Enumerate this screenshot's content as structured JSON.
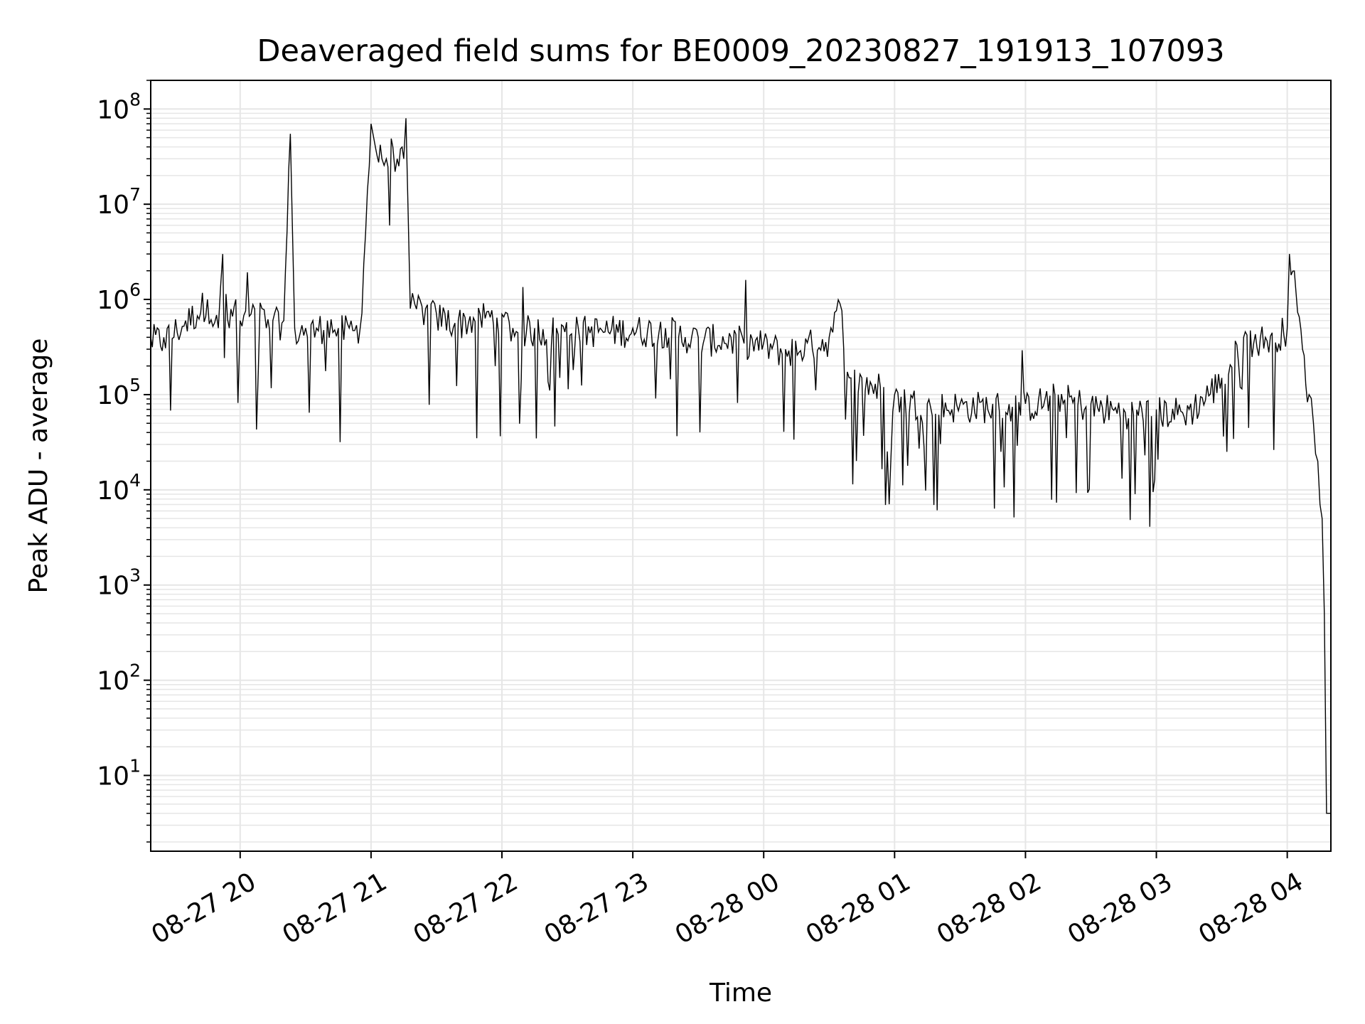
{
  "chart_data": {
    "type": "line",
    "title": "Deaveraged field sums for BE0009_20230827_191913_107093",
    "xlabel": "Time",
    "ylabel": "Peak ADU - average",
    "xlim": [
      "2023-08-27 19:19",
      "2023-08-28 04:20"
    ],
    "ylim": [
      1.6,
      200000000.0
    ],
    "yscale": "log",
    "grid": true,
    "line_color": "#000000",
    "grid_color": "#e6e6e6",
    "x_ticks": [
      {
        "label": "08-27 20",
        "value": "2023-08-27 20:00"
      },
      {
        "label": "08-27 21",
        "value": "2023-08-27 21:00"
      },
      {
        "label": "08-27 22",
        "value": "2023-08-27 22:00"
      },
      {
        "label": "08-27 23",
        "value": "2023-08-27 23:00"
      },
      {
        "label": "08-28 00",
        "value": "2023-08-28 00:00"
      },
      {
        "label": "08-28 01",
        "value": "2023-08-28 01:00"
      },
      {
        "label": "08-28 02",
        "value": "2023-08-28 02:00"
      },
      {
        "label": "08-28 03",
        "value": "2023-08-28 03:00"
      },
      {
        "label": "08-28 04",
        "value": "2023-08-28 04:00"
      }
    ],
    "y_ticks": [
      {
        "base": "10",
        "exp": "1",
        "value": 10
      },
      {
        "base": "10",
        "exp": "2",
        "value": 100
      },
      {
        "base": "10",
        "exp": "3",
        "value": 1000
      },
      {
        "base": "10",
        "exp": "4",
        "value": 10000
      },
      {
        "base": "10",
        "exp": "5",
        "value": 100000
      },
      {
        "base": "10",
        "exp": "6",
        "value": 1000000
      },
      {
        "base": "10",
        "exp": "7",
        "value": 10000000
      },
      {
        "base": "10",
        "exp": "8",
        "value": 100000000
      }
    ],
    "series": [
      {
        "x": [
          "2023-08-27 19:19",
          "2023-08-27 19:25",
          "2023-08-27 19:35",
          "2023-08-27 19:45",
          "2023-08-27 19:50",
          "2023-08-27 19:52",
          "2023-08-27 19:55",
          "2023-08-27 19:58",
          "2023-08-27 20:00",
          "2023-08-27 20:05",
          "2023-08-27 20:10",
          "2023-08-27 20:12",
          "2023-08-27 20:15",
          "2023-08-27 20:20",
          "2023-08-27 20:23",
          "2023-08-27 20:25",
          "2023-08-27 20:30",
          "2023-08-27 20:35",
          "2023-08-27 20:40",
          "2023-08-27 20:45",
          "2023-08-27 20:50",
          "2023-08-27 20:55",
          "2023-08-27 21:00",
          "2023-08-27 21:02",
          "2023-08-27 21:05",
          "2023-08-27 21:07",
          "2023-08-27 21:10",
          "2023-08-27 21:12",
          "2023-08-27 21:15",
          "2023-08-27 21:16",
          "2023-08-27 21:18",
          "2023-08-27 21:20",
          "2023-08-27 21:25",
          "2023-08-27 21:30",
          "2023-08-27 21:40",
          "2023-08-27 21:50",
          "2023-08-27 22:00",
          "2023-08-27 22:05",
          "2023-08-27 22:15",
          "2023-08-27 22:25",
          "2023-08-27 22:35",
          "2023-08-27 22:45",
          "2023-08-27 23:00",
          "2023-08-27 23:15",
          "2023-08-27 23:30",
          "2023-08-27 23:45",
          "2023-08-28 00:00",
          "2023-08-28 00:10",
          "2023-08-28 00:20",
          "2023-08-28 00:30",
          "2023-08-28 00:35",
          "2023-08-28 00:40",
          "2023-08-28 00:45",
          "2023-08-28 00:55",
          "2023-08-28 01:00",
          "2023-08-28 01:15",
          "2023-08-28 01:30",
          "2023-08-28 01:45",
          "2023-08-28 02:00",
          "2023-08-28 02:15",
          "2023-08-28 02:30",
          "2023-08-28 02:45",
          "2023-08-28 03:00",
          "2023-08-28 03:15",
          "2023-08-28 03:30",
          "2023-08-28 03:40",
          "2023-08-28 03:50",
          "2023-08-28 04:00",
          "2023-08-28 04:01",
          "2023-08-28 04:04",
          "2023-08-28 04:07",
          "2023-08-28 04:10",
          "2023-08-28 04:12",
          "2023-08-28 04:14",
          "2023-08-28 04:16",
          "2023-08-28 04:17",
          "2023-08-28 04:18",
          "2023-08-28 04:20"
        ],
        "y": [
          400000,
          400000,
          600000,
          1000000,
          500000,
          3000000,
          500000,
          1000000,
          600000,
          700000,
          800000,
          500000,
          600000,
          600000,
          55000000,
          500000,
          500000,
          500000,
          600000,
          500000,
          500000,
          500000,
          70000000,
          40000000,
          30000000,
          30000000,
          40000000,
          30000000,
          30000000,
          80000000,
          800000,
          900000,
          800000,
          700000,
          600000,
          700000,
          700000,
          500000,
          500000,
          500000,
          500000,
          500000,
          500000,
          500000,
          400000,
          400000,
          350000,
          300000,
          350000,
          400000,
          900000,
          150000,
          150000,
          120000,
          100000,
          80000,
          80000,
          80000,
          80000,
          100000,
          80000,
          70000,
          70000,
          70000,
          150000,
          400000,
          400000,
          500000,
          3000000,
          1200000,
          300000,
          100000,
          50000,
          20000,
          5000,
          500,
          4,
          4
        ]
      }
    ]
  }
}
